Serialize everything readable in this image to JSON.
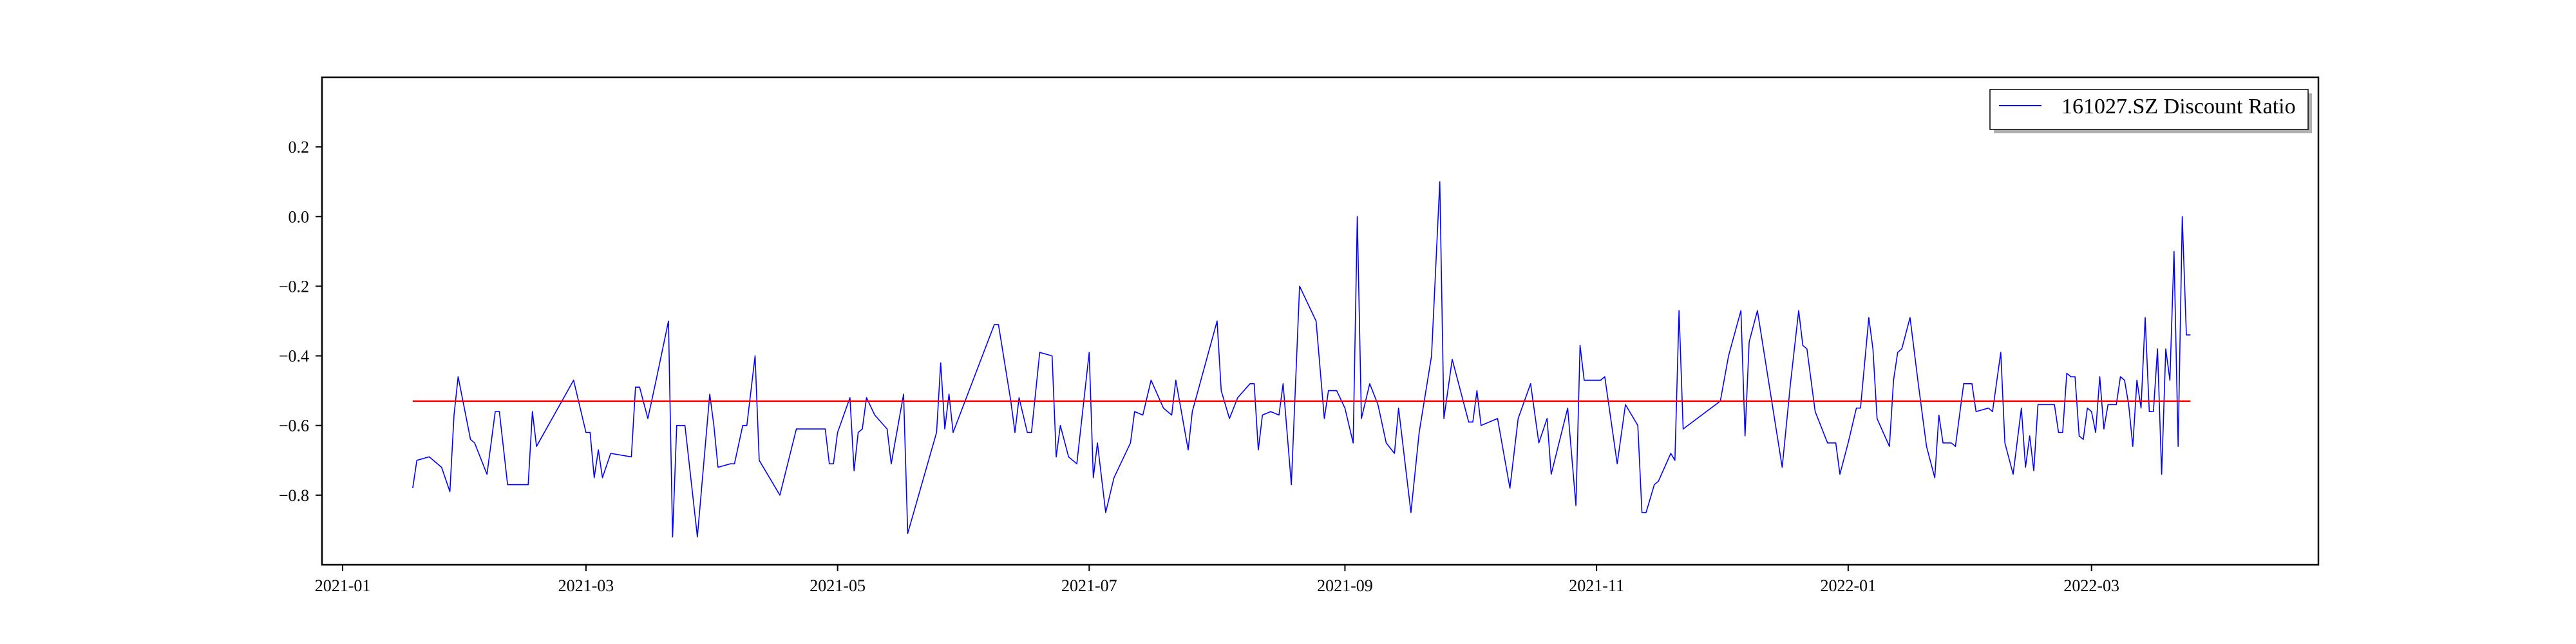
{
  "chart_data": {
    "type": "line",
    "title": "",
    "xlabel": "",
    "ylabel": "",
    "x_ticks": [
      "2021-01",
      "2021-03",
      "2021-05",
      "2021-07",
      "2021-09",
      "2021-11",
      "2022-01",
      "2022-03"
    ],
    "y_ticks": [
      "0.2",
      "0.0",
      "−0.2",
      "−0.4",
      "−0.6",
      "−0.8"
    ],
    "xlim": [
      "2020-12-27",
      "2022-04-25"
    ],
    "ylim": [
      -1.0,
      0.4
    ],
    "grid": false,
    "legend": {
      "position": "top-right",
      "entries": [
        "161027.SZ Discount Ratio"
      ]
    },
    "colors": {
      "series": "#0000ff",
      "reference_line": "#ff0000",
      "axes": "#000000"
    },
    "reference_line": {
      "y": -0.53,
      "x_start": "2021-01-18",
      "x_end": "2022-03-25"
    },
    "series": [
      {
        "name": "161027.SZ Discount Ratio",
        "points": [
          [
            "2021-01-18",
            -0.78
          ],
          [
            "2021-01-19",
            -0.7
          ],
          [
            "2021-01-22",
            -0.69
          ],
          [
            "2021-01-25",
            -0.72
          ],
          [
            "2021-01-27",
            -0.79
          ],
          [
            "2021-01-28",
            -0.57
          ],
          [
            "2021-01-29",
            -0.46
          ],
          [
            "2021-02-01",
            -0.64
          ],
          [
            "2021-02-02",
            -0.65
          ],
          [
            "2021-02-05",
            -0.74
          ],
          [
            "2021-02-07",
            -0.56
          ],
          [
            "2021-02-08",
            -0.56
          ],
          [
            "2021-02-10",
            -0.77
          ],
          [
            "2021-02-15",
            -0.77
          ],
          [
            "2021-02-16",
            -0.56
          ],
          [
            "2021-02-17",
            -0.66
          ],
          [
            "2021-02-26",
            -0.47
          ],
          [
            "2021-03-01",
            -0.62
          ],
          [
            "2021-03-02",
            -0.62
          ],
          [
            "2021-03-03",
            -0.75
          ],
          [
            "2021-03-04",
            -0.67
          ],
          [
            "2021-03-05",
            -0.75
          ],
          [
            "2021-03-07",
            -0.68
          ],
          [
            "2021-03-12",
            -0.69
          ],
          [
            "2021-03-13",
            -0.49
          ],
          [
            "2021-03-14",
            -0.49
          ],
          [
            "2021-03-16",
            -0.58
          ],
          [
            "2021-03-18",
            -0.47
          ],
          [
            "2021-03-21",
            -0.3
          ],
          [
            "2021-03-22",
            -0.92
          ],
          [
            "2021-03-23",
            -0.6
          ],
          [
            "2021-03-25",
            -0.6
          ],
          [
            "2021-03-28",
            -0.92
          ],
          [
            "2021-03-31",
            -0.51
          ],
          [
            "2021-04-01",
            -0.6
          ],
          [
            "2021-04-02",
            -0.72
          ],
          [
            "2021-04-05",
            -0.71
          ],
          [
            "2021-04-06",
            -0.71
          ],
          [
            "2021-04-08",
            -0.6
          ],
          [
            "2021-04-09",
            -0.6
          ],
          [
            "2021-04-11",
            -0.4
          ],
          [
            "2021-04-12",
            -0.7
          ],
          [
            "2021-04-17",
            -0.8
          ],
          [
            "2021-04-21",
            -0.61
          ],
          [
            "2021-04-23",
            -0.61
          ],
          [
            "2021-04-26",
            -0.61
          ],
          [
            "2021-04-28",
            -0.61
          ],
          [
            "2021-04-29",
            -0.71
          ],
          [
            "2021-04-30",
            -0.71
          ],
          [
            "2021-05-01",
            -0.62
          ],
          [
            "2021-05-04",
            -0.52
          ],
          [
            "2021-05-05",
            -0.73
          ],
          [
            "2021-05-06",
            -0.62
          ],
          [
            "2021-05-07",
            -0.61
          ],
          [
            "2021-05-08",
            -0.52
          ],
          [
            "2021-05-10",
            -0.57
          ],
          [
            "2021-05-13",
            -0.61
          ],
          [
            "2021-05-14",
            -0.71
          ],
          [
            "2021-05-17",
            -0.51
          ],
          [
            "2021-05-18",
            -0.91
          ],
          [
            "2021-05-25",
            -0.62
          ],
          [
            "2021-05-26",
            -0.42
          ],
          [
            "2021-05-27",
            -0.61
          ],
          [
            "2021-05-28",
            -0.51
          ],
          [
            "2021-05-29",
            -0.62
          ],
          [
            "2021-06-08",
            -0.31
          ],
          [
            "2021-06-09",
            -0.31
          ],
          [
            "2021-06-12",
            -0.53
          ],
          [
            "2021-06-13",
            -0.62
          ],
          [
            "2021-06-14",
            -0.52
          ],
          [
            "2021-06-16",
            -0.62
          ],
          [
            "2021-06-17",
            -0.62
          ],
          [
            "2021-06-19",
            -0.39
          ],
          [
            "2021-06-22",
            -0.4
          ],
          [
            "2021-06-23",
            -0.69
          ],
          [
            "2021-06-24",
            -0.6
          ],
          [
            "2021-06-26",
            -0.69
          ],
          [
            "2021-06-28",
            -0.71
          ],
          [
            "2021-07-01",
            -0.39
          ],
          [
            "2021-07-02",
            -0.75
          ],
          [
            "2021-07-03",
            -0.65
          ],
          [
            "2021-07-05",
            -0.85
          ],
          [
            "2021-07-07",
            -0.75
          ],
          [
            "2021-07-11",
            -0.65
          ],
          [
            "2021-07-12",
            -0.56
          ],
          [
            "2021-07-14",
            -0.57
          ],
          [
            "2021-07-16",
            -0.47
          ],
          [
            "2021-07-19",
            -0.55
          ],
          [
            "2021-07-21",
            -0.57
          ],
          [
            "2021-07-22",
            -0.47
          ],
          [
            "2021-07-25",
            -0.67
          ],
          [
            "2021-07-26",
            -0.56
          ],
          [
            "2021-08-01",
            -0.3
          ],
          [
            "2021-08-02",
            -0.5
          ],
          [
            "2021-08-04",
            -0.58
          ],
          [
            "2021-08-06",
            -0.52
          ],
          [
            "2021-08-09",
            -0.48
          ],
          [
            "2021-08-10",
            -0.48
          ],
          [
            "2021-08-11",
            -0.67
          ],
          [
            "2021-08-12",
            -0.57
          ],
          [
            "2021-08-14",
            -0.56
          ],
          [
            "2021-08-16",
            -0.57
          ],
          [
            "2021-08-17",
            -0.48
          ],
          [
            "2021-08-19",
            -0.77
          ],
          [
            "2021-08-21",
            -0.2
          ],
          [
            "2021-08-25",
            -0.3
          ],
          [
            "2021-08-27",
            -0.58
          ],
          [
            "2021-08-28",
            -0.5
          ],
          [
            "2021-08-30",
            -0.5
          ],
          [
            "2021-09-01",
            -0.55
          ],
          [
            "2021-09-03",
            -0.65
          ],
          [
            "2021-09-04",
            0.0
          ],
          [
            "2021-09-05",
            -0.58
          ],
          [
            "2021-09-07",
            -0.48
          ],
          [
            "2021-09-09",
            -0.54
          ],
          [
            "2021-09-11",
            -0.65
          ],
          [
            "2021-09-13",
            -0.68
          ],
          [
            "2021-09-14",
            -0.55
          ],
          [
            "2021-09-17",
            -0.85
          ],
          [
            "2021-09-19",
            -0.62
          ],
          [
            "2021-09-22",
            -0.4
          ],
          [
            "2021-09-24",
            0.1
          ],
          [
            "2021-09-25",
            -0.58
          ],
          [
            "2021-09-27",
            -0.41
          ],
          [
            "2021-10-01",
            -0.59
          ],
          [
            "2021-10-02",
            -0.59
          ],
          [
            "2021-10-03",
            -0.5
          ],
          [
            "2021-10-04",
            -0.6
          ],
          [
            "2021-10-08",
            -0.58
          ],
          [
            "2021-10-11",
            -0.78
          ],
          [
            "2021-10-13",
            -0.58
          ],
          [
            "2021-10-16",
            -0.48
          ],
          [
            "2021-10-18",
            -0.65
          ],
          [
            "2021-10-20",
            -0.58
          ],
          [
            "2021-10-21",
            -0.74
          ],
          [
            "2021-10-25",
            -0.55
          ],
          [
            "2021-10-27",
            -0.83
          ],
          [
            "2021-10-28",
            -0.37
          ],
          [
            "2021-10-29",
            -0.47
          ],
          [
            "2021-11-02",
            -0.47
          ],
          [
            "2021-11-03",
            -0.46
          ],
          [
            "2021-11-06",
            -0.71
          ],
          [
            "2021-11-08",
            -0.54
          ],
          [
            "2021-11-11",
            -0.6
          ],
          [
            "2021-11-12",
            -0.85
          ],
          [
            "2021-11-13",
            -0.85
          ],
          [
            "2021-11-15",
            -0.77
          ],
          [
            "2021-11-16",
            -0.76
          ],
          [
            "2021-11-19",
            -0.68
          ],
          [
            "2021-11-20",
            -0.7
          ],
          [
            "2021-11-21",
            -0.27
          ],
          [
            "2021-11-22",
            -0.61
          ],
          [
            "2021-12-01",
            -0.53
          ],
          [
            "2021-12-03",
            -0.4
          ],
          [
            "2021-12-06",
            -0.27
          ],
          [
            "2021-12-07",
            -0.63
          ],
          [
            "2021-12-08",
            -0.36
          ],
          [
            "2021-12-10",
            -0.27
          ],
          [
            "2021-12-16",
            -0.72
          ],
          [
            "2021-12-18",
            -0.48
          ],
          [
            "2021-12-20",
            -0.27
          ],
          [
            "2021-12-21",
            -0.37
          ],
          [
            "2021-12-22",
            -0.38
          ],
          [
            "2021-12-24",
            -0.56
          ],
          [
            "2021-12-27",
            -0.65
          ],
          [
            "2021-12-29",
            -0.65
          ],
          [
            "2021-12-30",
            -0.74
          ],
          [
            "2022-01-01",
            -0.65
          ],
          [
            "2022-01-03",
            -0.55
          ],
          [
            "2022-01-04",
            -0.55
          ],
          [
            "2022-01-06",
            -0.29
          ],
          [
            "2022-01-07",
            -0.38
          ],
          [
            "2022-01-08",
            -0.58
          ],
          [
            "2022-01-11",
            -0.66
          ],
          [
            "2022-01-12",
            -0.47
          ],
          [
            "2022-01-13",
            -0.39
          ],
          [
            "2022-01-14",
            -0.38
          ],
          [
            "2022-01-16",
            -0.29
          ],
          [
            "2022-01-18",
            -0.48
          ],
          [
            "2022-01-20",
            -0.66
          ],
          [
            "2022-01-22",
            -0.75
          ],
          [
            "2022-01-23",
            -0.57
          ],
          [
            "2022-01-24",
            -0.65
          ],
          [
            "2022-01-26",
            -0.65
          ],
          [
            "2022-01-27",
            -0.66
          ],
          [
            "2022-01-29",
            -0.48
          ],
          [
            "2022-01-31",
            -0.48
          ],
          [
            "2022-02-01",
            -0.56
          ],
          [
            "2022-02-04",
            -0.55
          ],
          [
            "2022-02-05",
            -0.56
          ],
          [
            "2022-02-07",
            -0.39
          ],
          [
            "2022-02-08",
            -0.65
          ],
          [
            "2022-02-10",
            -0.74
          ],
          [
            "2022-02-12",
            -0.55
          ],
          [
            "2022-02-13",
            -0.72
          ],
          [
            "2022-02-14",
            -0.63
          ],
          [
            "2022-02-15",
            -0.73
          ],
          [
            "2022-02-16",
            -0.54
          ],
          [
            "2022-02-18",
            -0.54
          ],
          [
            "2022-02-20",
            -0.54
          ],
          [
            "2022-02-21",
            -0.62
          ],
          [
            "2022-02-22",
            -0.62
          ],
          [
            "2022-02-23",
            -0.45
          ],
          [
            "2022-02-24",
            -0.46
          ],
          [
            "2022-02-25",
            -0.46
          ],
          [
            "2022-02-26",
            -0.63
          ],
          [
            "2022-02-27",
            -0.64
          ],
          [
            "2022-02-28",
            -0.55
          ],
          [
            "2022-03-01",
            -0.56
          ],
          [
            "2022-03-02",
            -0.62
          ],
          [
            "2022-03-03",
            -0.46
          ],
          [
            "2022-03-04",
            -0.61
          ],
          [
            "2022-03-05",
            -0.54
          ],
          [
            "2022-03-06",
            -0.54
          ],
          [
            "2022-03-07",
            -0.54
          ],
          [
            "2022-03-08",
            -0.46
          ],
          [
            "2022-03-09",
            -0.47
          ],
          [
            "2022-03-10",
            -0.54
          ],
          [
            "2022-03-11",
            -0.66
          ],
          [
            "2022-03-12",
            -0.47
          ],
          [
            "2022-03-13",
            -0.55
          ],
          [
            "2022-03-14",
            -0.29
          ],
          [
            "2022-03-15",
            -0.56
          ],
          [
            "2022-03-16",
            -0.56
          ],
          [
            "2022-03-17",
            -0.38
          ],
          [
            "2022-03-18",
            -0.74
          ],
          [
            "2022-03-19",
            -0.38
          ],
          [
            "2022-03-20",
            -0.47
          ],
          [
            "2022-03-21",
            -0.1
          ],
          [
            "2022-03-22",
            -0.66
          ],
          [
            "2022-03-23",
            0.0
          ],
          [
            "2022-03-24",
            -0.34
          ],
          [
            "2022-03-25",
            -0.34
          ]
        ]
      }
    ]
  }
}
